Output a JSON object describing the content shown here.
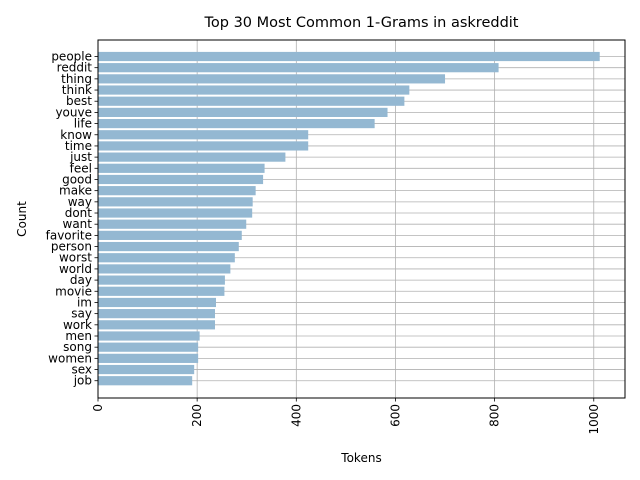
{
  "chart_data": {
    "type": "bar",
    "orientation": "horizontal",
    "title": "Top 30 Most Common 1-Grams in askreddit",
    "xlabel": "Tokens",
    "ylabel": "Count",
    "xlim": [
      0,
      1063
    ],
    "xticks": [
      0,
      200,
      400,
      600,
      800,
      1000
    ],
    "xtick_rotation": 90,
    "grid": true,
    "bar_color": "#94b8d2",
    "categories": [
      "people",
      "reddit",
      "thing",
      "think",
      "best",
      "youve",
      "life",
      "know",
      "time",
      "just",
      "feel",
      "good",
      "make",
      "way",
      "dont",
      "want",
      "favorite",
      "person",
      "worst",
      "world",
      "day",
      "movie",
      "im",
      "say",
      "work",
      "men",
      "song",
      "women",
      "sex",
      "job"
    ],
    "values": [
      1012,
      808,
      700,
      628,
      618,
      584,
      558,
      424,
      424,
      378,
      336,
      333,
      318,
      312,
      311,
      299,
      290,
      284,
      276,
      267,
      256,
      255,
      238,
      236,
      236,
      205,
      202,
      202,
      194,
      190
    ]
  }
}
